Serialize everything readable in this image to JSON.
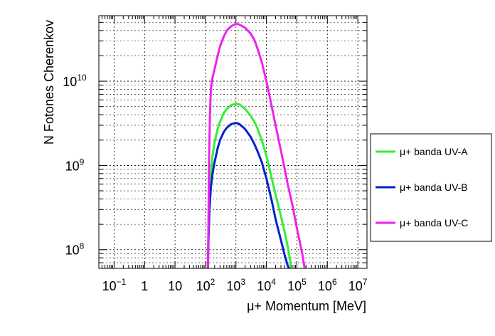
{
  "chart_data": {
    "type": "line",
    "title": "",
    "xlabel": "μ+ Momentum [MeV]",
    "ylabel": "N Fotones Cherenkov",
    "xscale": "log",
    "yscale": "log",
    "xlim": [
      0.0316,
      20000000
    ],
    "ylim": [
      60000000,
      60000000000
    ],
    "grid": true,
    "legend_position": "right",
    "x_ticks": [
      {
        "value": 0.1,
        "base": "10",
        "exp": "−1"
      },
      {
        "value": 1,
        "base": "1",
        "exp": ""
      },
      {
        "value": 10,
        "base": "10",
        "exp": ""
      },
      {
        "value": 100,
        "base": "10",
        "exp": "2"
      },
      {
        "value": 1000,
        "base": "10",
        "exp": "3"
      },
      {
        "value": 10000,
        "base": "10",
        "exp": "4"
      },
      {
        "value": 100000,
        "base": "10",
        "exp": "5"
      },
      {
        "value": 1000000,
        "base": "10",
        "exp": "6"
      },
      {
        "value": 10000000,
        "base": "10",
        "exp": "7"
      }
    ],
    "y_ticks": [
      {
        "value": 100000000,
        "base": "10",
        "exp": "8"
      },
      {
        "value": 1000000000,
        "base": "10",
        "exp": "9"
      },
      {
        "value": 10000000000,
        "base": "10",
        "exp": "10"
      }
    ],
    "series": [
      {
        "name": "μ+ banda UV-A",
        "color": "#33ee33",
        "x": [
          120,
          125,
          135,
          150,
          170,
          200,
          250,
          300,
          400,
          500,
          700,
          1000,
          1300,
          2000,
          3000,
          4000,
          5000,
          7000,
          10000,
          15000,
          20000,
          30000,
          40000,
          50000,
          60000,
          65000
        ],
        "y": [
          60000000,
          150000000,
          400000000,
          800000000,
          1300000000,
          1900000000,
          2700000000,
          3300000000,
          4200000000,
          4700000000,
          5200000000,
          5400000000,
          5300000000,
          4700000000,
          3900000000,
          3300000000,
          2800000000,
          2000000000,
          1300000000,
          700000000,
          450000000,
          250000000,
          160000000,
          110000000,
          75000000,
          60000000
        ]
      },
      {
        "name": "μ+ banda UV-B",
        "color": "#0022cc",
        "x": [
          120,
          125,
          135,
          150,
          170,
          200,
          250,
          300,
          400,
          500,
          700,
          1000,
          1300,
          2000,
          3000,
          4000,
          5000,
          7000,
          10000,
          15000,
          20000,
          30000,
          40000,
          50000,
          55000
        ],
        "y": [
          60000000,
          130000000,
          300000000,
          550000000,
          800000000,
          1100000000,
          1600000000,
          2000000000,
          2500000000,
          2800000000,
          3100000000,
          3200000000,
          3100000000,
          2700000000,
          2200000000,
          1800000000,
          1500000000,
          1100000000,
          700000000,
          380000000,
          230000000,
          130000000,
          85000000,
          65000000,
          60000000
        ]
      },
      {
        "name": "μ+ banda UV-C",
        "color": "#ee22ee",
        "x": [
          120,
          125,
          130,
          140,
          150,
          170,
          200,
          250,
          300,
          400,
          500,
          700,
          1000,
          1300,
          2000,
          3000,
          4000,
          5000,
          7000,
          10000,
          15000,
          20000,
          30000,
          40000,
          50000,
          70000,
          100000,
          150000,
          180000
        ],
        "y": [
          60000000,
          200000000,
          1000000000,
          4000000000,
          8000000000,
          11000000000,
          14000000000,
          20000000000,
          26000000000,
          34000000000,
          40000000000,
          45000000000,
          48000000000,
          47000000000,
          43000000000,
          37000000000,
          31000000000,
          25000000000,
          17000000000,
          10000000000,
          5000000000,
          3000000000,
          1500000000,
          900000000,
          600000000,
          350000000,
          180000000,
          90000000,
          60000000
        ]
      }
    ]
  }
}
